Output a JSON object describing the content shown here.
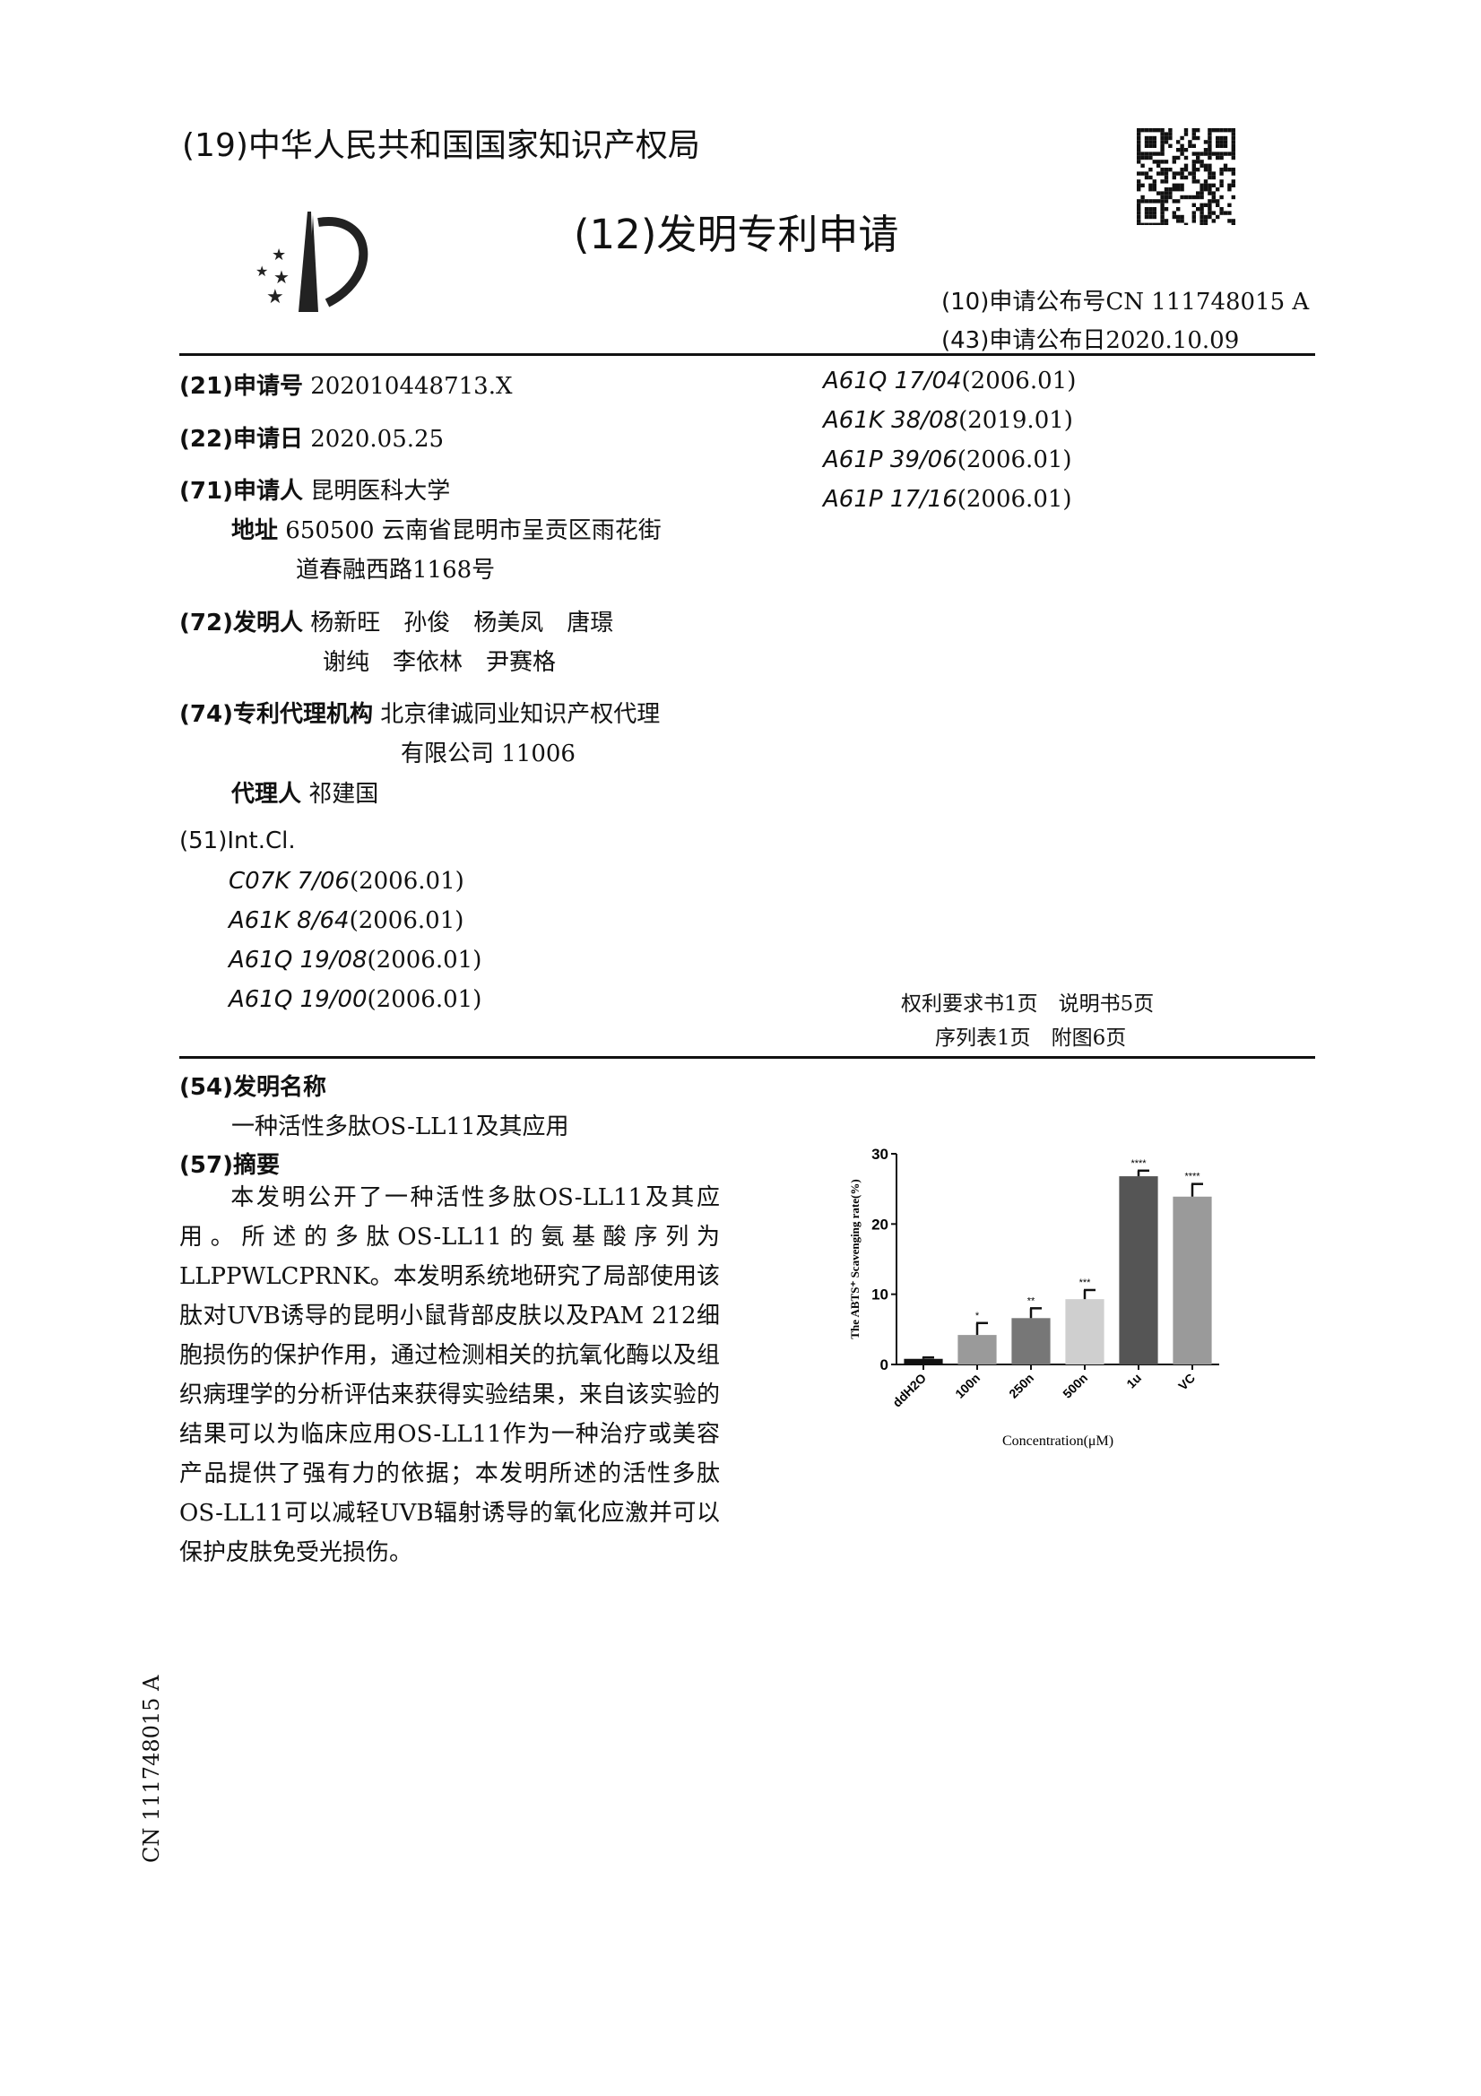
{
  "header": {
    "office": "(19)中华人民共和国国家知识产权局",
    "doc_type": "(12)发明专利申请",
    "pub_no_label": "(10)申请公布号",
    "pub_no": "CN 111748015 A",
    "pub_date_label": "(43)申请公布日",
    "pub_date": "2020.10.09"
  },
  "biblio": {
    "app_no_label": "(21)申请号",
    "app_no": "202010448713.X",
    "app_date_label": "(22)申请日",
    "app_date": "2020.05.25",
    "applicant_label": "(71)申请人",
    "applicant": "昆明医科大学",
    "address_label": "地址",
    "address_1": "650500 云南省昆明市呈贡区雨花街",
    "address_2": "道春融西路1168号",
    "inventors_label": "(72)发明人",
    "inventors_1": "杨新旺　孙俊　杨美凤　唐璟",
    "inventors_2": "谢纯　李依林　尹赛格",
    "agency_label": "(74)专利代理机构",
    "agency_1": "北京律诚同业知识产权代理",
    "agency_2": "有限公司 11006",
    "agent_label": "代理人",
    "agent": "祁建国",
    "intcl_label": "(51)Int.Cl.",
    "intcl_left": [
      {
        "code": "C07K 7/06",
        "ver": "(2006.01)"
      },
      {
        "code": "A61K 8/64",
        "ver": "(2006.01)"
      },
      {
        "code": "A61Q 19/08",
        "ver": "(2006.01)"
      },
      {
        "code": "A61Q 19/00",
        "ver": "(2006.01)"
      }
    ],
    "intcl_right": [
      {
        "code": "A61Q 17/04",
        "ver": "(2006.01)"
      },
      {
        "code": "A61K 38/08",
        "ver": "(2019.01)"
      },
      {
        "code": "A61P 39/06",
        "ver": "(2006.01)"
      },
      {
        "code": "A61P 17/16",
        "ver": "(2006.01)"
      }
    ],
    "pages_1": "权利要求书1页　说明书5页",
    "pages_2": "序列表1页　附图6页"
  },
  "invention": {
    "title_label": "(54)发明名称",
    "title": "一种活性多肽OS-LL11及其应用",
    "abstract_label": "(57)摘要",
    "abstract": "　　本发明公开了一种活性多肽OS-LL11及其应用。所述的多肽OS-LL11的氨基酸序列为LLPPWLCPRNK。本发明系统地研究了局部使用该肽对UVB诱导的昆明小鼠背部皮肤以及PAM 212细胞损伤的保护作用，通过检测相关的抗氧化酶以及组织病理学的分析评估来获得实验结果，来自该实验的结果可以为临床应用OS-LL11作为一种治疗或美容产品提供了强有力的依据；本发明所述的活性多肽OS-LL11可以减轻UVB辐射诱导的氧化应激并可以保护皮肤免受光损伤。"
  },
  "side_text": "CN 111748015 A",
  "chart_data": {
    "type": "bar",
    "categories": [
      "ddH2O",
      "100n",
      "250n",
      "500n",
      "1u",
      "VC"
    ],
    "values": [
      0.8,
      4.2,
      6.6,
      9.3,
      26.8,
      23.9
    ],
    "errors": [
      0.2,
      1.7,
      1.4,
      1.3,
      0.8,
      1.8
    ],
    "significance": [
      "",
      "*",
      "**",
      "***",
      "****",
      "****"
    ],
    "colors": [
      "#111111",
      "#9a9a9a",
      "#777777",
      "#cfcfcf",
      "#555555",
      "#9a9a9a"
    ],
    "xlabel": "Concentration(μM)",
    "ylabel": "The ABTS⁺ Scavenging rate(%)",
    "ylim": [
      0,
      30
    ],
    "yticks": [
      0,
      10,
      20,
      30
    ],
    "grid": false
  }
}
